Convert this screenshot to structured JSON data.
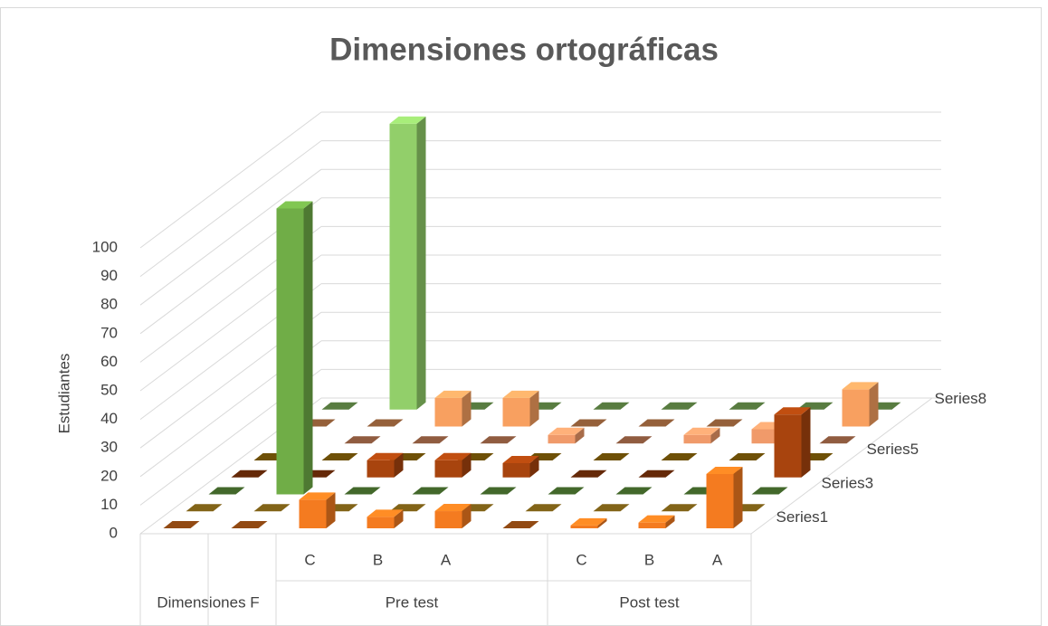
{
  "chart_data": {
    "type": "bar3d",
    "title": "Dimensiones ortográficas",
    "y_label": "Estudiantes",
    "categories": [
      null,
      null,
      "C",
      "B",
      "A",
      null,
      "C",
      "B",
      "A"
    ],
    "x_groups": [
      {
        "label": "Dimensiones F",
        "count": 2
      },
      {
        "label": "Pre test",
        "count": 4
      },
      {
        "label": "Post test",
        "count": 3
      }
    ],
    "series": [
      {
        "name": "Series1",
        "color": "#f47b20",
        "values": [
          0,
          0,
          10,
          4,
          6,
          0,
          1,
          2,
          19
        ]
      },
      {
        "color": "#d9a628",
        "values": [
          0,
          0,
          0,
          0,
          0,
          0,
          0,
          0,
          0
        ]
      },
      {
        "name": "Series3",
        "color": "#70ad47",
        "values": [
          0,
          100,
          0,
          0,
          0,
          0,
          0,
          0,
          0
        ]
      },
      {
        "color": "#a8440e",
        "values": [
          0,
          0,
          6,
          6,
          5,
          0,
          0,
          0,
          22
        ]
      },
      {
        "name": "Series5",
        "color": "#b8860b",
        "values": [
          0,
          0,
          0,
          0,
          0,
          0,
          0,
          0,
          0
        ]
      },
      {
        "color": "#f09a6a",
        "values": [
          0,
          0,
          0,
          0,
          3,
          0,
          3,
          5,
          0
        ]
      },
      {
        "color": "#f8a060",
        "values": [
          0,
          0,
          10,
          10,
          0,
          0,
          0,
          0,
          13
        ]
      },
      {
        "name": "Series8",
        "color": "#92cf6a",
        "values": [
          0,
          100,
          0,
          0,
          0,
          0,
          0,
          0,
          0
        ]
      }
    ],
    "ylim": [
      0,
      100
    ],
    "yticks": [
      0,
      10,
      20,
      30,
      40,
      50,
      60,
      70,
      80,
      90,
      100
    ],
    "grid": true
  }
}
